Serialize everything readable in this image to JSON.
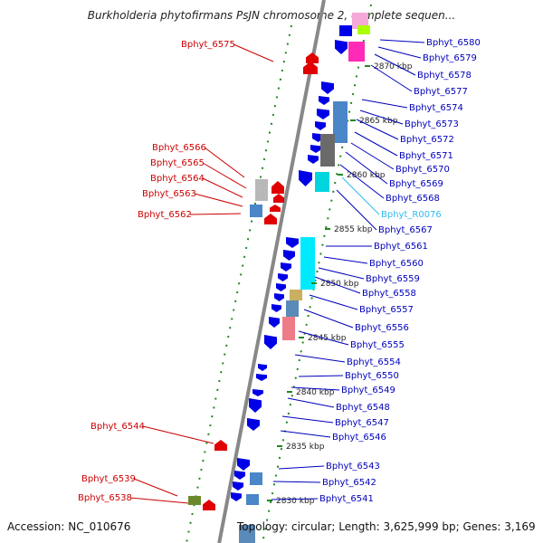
{
  "title": "Burkholderia phytofirmans PsJN chromosome 2, complete sequen...",
  "footer": {
    "accession": "Accession: NC_010676",
    "summary": "Topology: circular; Length: 3,625,999 bp; Genes: 3,169"
  },
  "colors": {
    "plus_strand": "#e00000",
    "minus_strand": "#0000e6",
    "left_label": "#cc0000",
    "right_label": "#0000bb",
    "rna_label": "#33bbee",
    "backbone": "#888888",
    "ticks": "#228822"
  },
  "kbp_marks": [
    "2870 kbp",
    "2865 kbp",
    "2860 kbp",
    "2855 kbp",
    "2850 kbp",
    "2845 kbp",
    "2840 kbp",
    "2835 kbp",
    "2830 kbp"
  ],
  "left_genes": [
    "Bphyt_6575",
    "Bphyt_6566",
    "Bphyt_6565",
    "Bphyt_6564",
    "Bphyt_6563",
    "Bphyt_6562",
    "Bphyt_6544",
    "Bphyt_6539",
    "Bphyt_6538"
  ],
  "right_genes": [
    "Bphyt_6580",
    "Bphyt_6579",
    "Bphyt_6578",
    "Bphyt_6577",
    "Bphyt_6574",
    "Bphyt_6573",
    "Bphyt_6572",
    "Bphyt_6571",
    "Bphyt_6570",
    "Bphyt_6569",
    "Bphyt_6568",
    "Bphyt_R0076",
    "Bphyt_6567",
    "Bphyt_6561",
    "Bphyt_6560",
    "Bphyt_6559",
    "Bphyt_6558",
    "Bphyt_6557",
    "Bphyt_6556",
    "Bphyt_6555",
    "Bphyt_6554",
    "Bphyt_6550",
    "Bphyt_6549",
    "Bphyt_6548",
    "Bphyt_6547",
    "Bphyt_6546",
    "Bphyt_6543",
    "Bphyt_6542",
    "Bphyt_6541"
  ]
}
